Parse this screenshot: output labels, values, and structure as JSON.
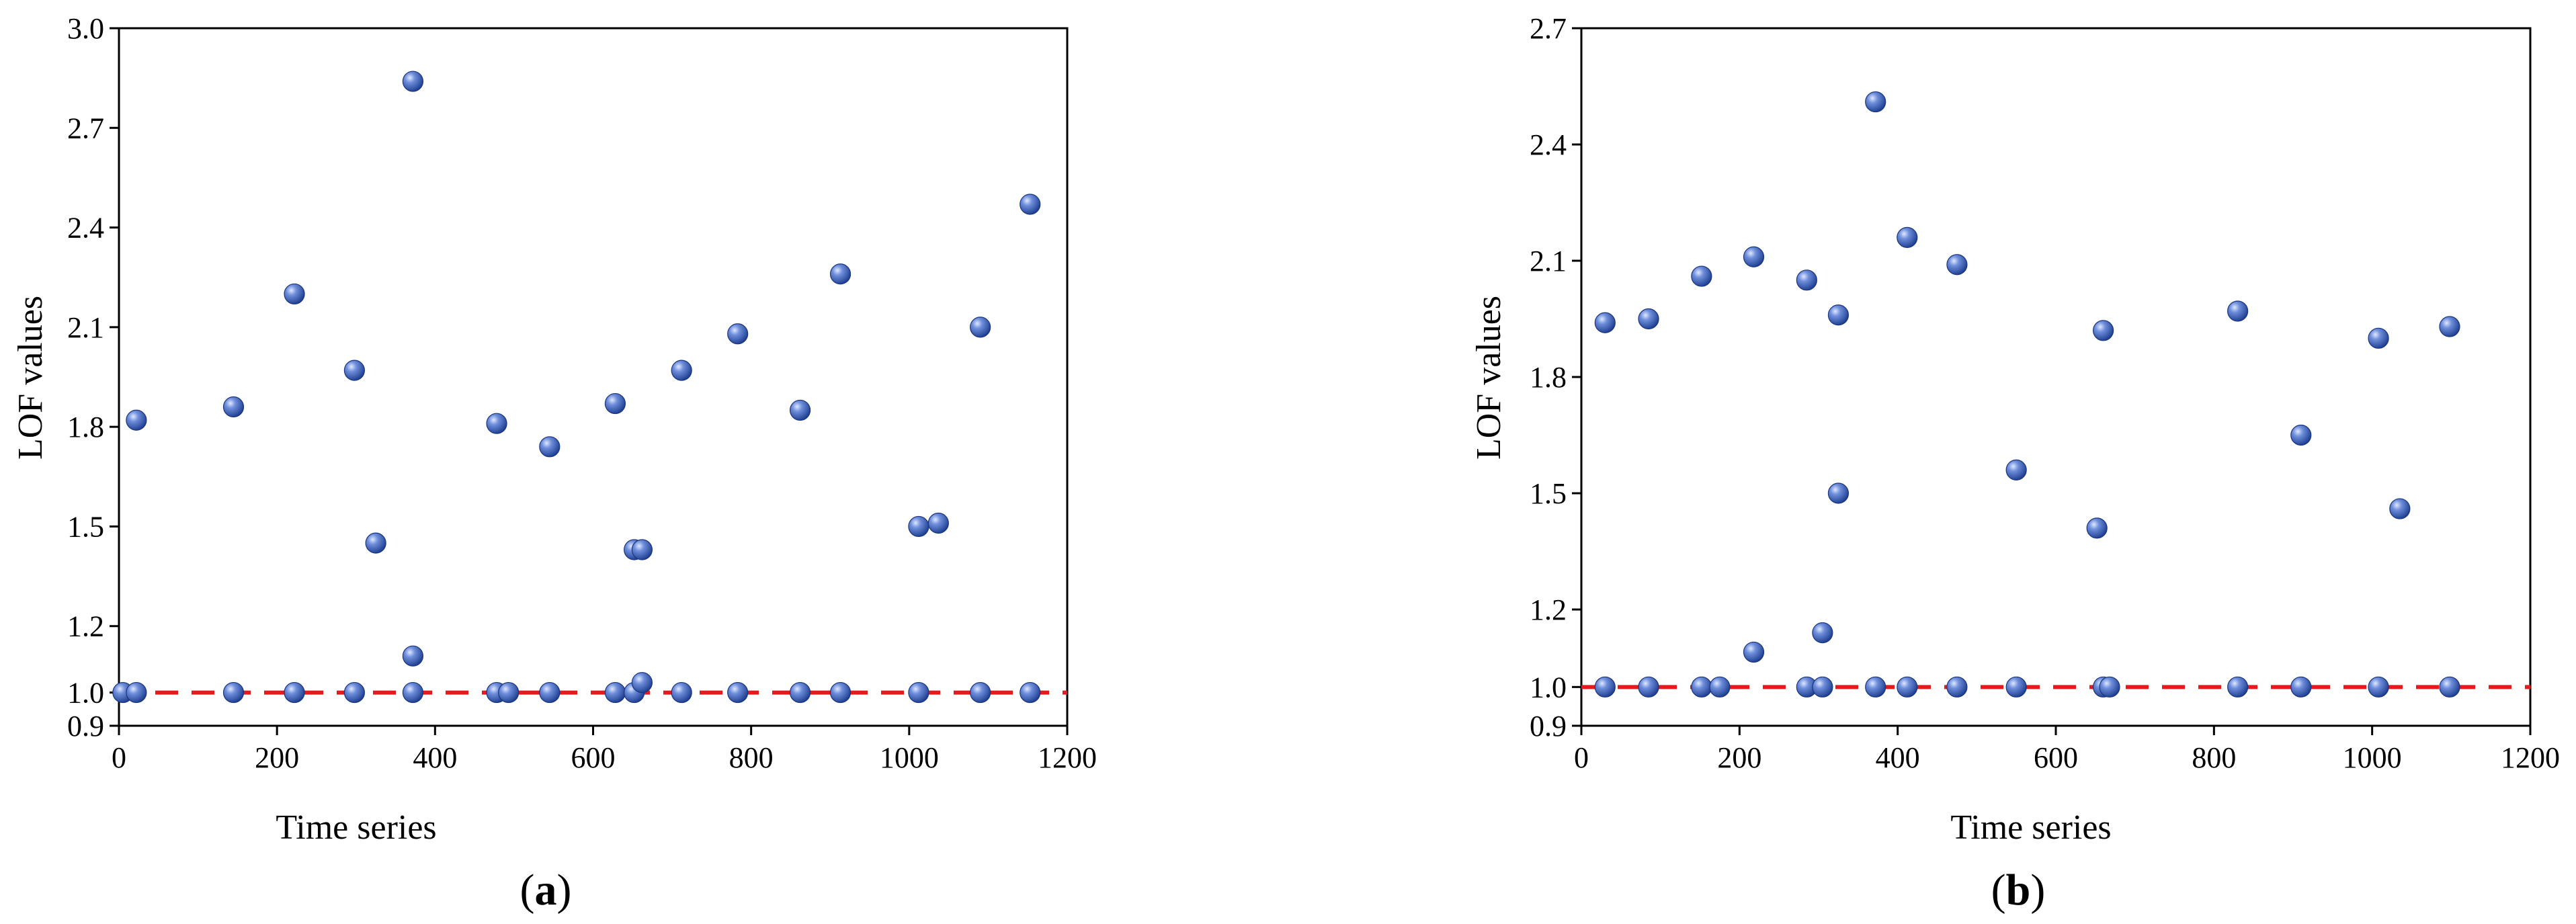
{
  "chart_data": [
    {
      "type": "scatter",
      "panel_label": "a",
      "title": "",
      "xlabel": "Time series",
      "ylabel": "LOF values",
      "xlim": [
        0,
        1200
      ],
      "ylim": [
        0.9,
        3.0
      ],
      "xticks": [
        0,
        200,
        400,
        600,
        800,
        1000,
        1200
      ],
      "yticks": [
        0.9,
        1.0,
        1.2,
        1.5,
        1.8,
        2.1,
        2.4,
        2.7,
        3.0
      ],
      "ytick_labels": [
        "0.9",
        "1.0",
        "1.2",
        "1.5",
        "1.8",
        "2.1",
        "2.4",
        "2.7",
        "3.0"
      ],
      "grid": false,
      "legend": "none",
      "marker_color": "#3a5fb8",
      "threshold": {
        "y": 1.0,
        "x": [
          0,
          1200
        ],
        "color": "#e41a1c",
        "style": "dashed"
      },
      "series": [
        {
          "points": [
            [
              5,
              1.0
            ],
            [
              22,
              1.82
            ],
            [
              22,
              1.0
            ],
            [
              145,
              1.86
            ],
            [
              145,
              1.0
            ],
            [
              222,
              2.2
            ],
            [
              222,
              1.0
            ],
            [
              298,
              1.97
            ],
            [
              298,
              1.0
            ],
            [
              325,
              1.45
            ],
            [
              372,
              2.84
            ],
            [
              372,
              1.11
            ],
            [
              372,
              1.0
            ],
            [
              478,
              1.81
            ],
            [
              478,
              1.0
            ],
            [
              493,
              1.0
            ],
            [
              545,
              1.74
            ],
            [
              545,
              1.0
            ],
            [
              628,
              1.87
            ],
            [
              628,
              1.0
            ],
            [
              652,
              1.43
            ],
            [
              652,
              1.0
            ],
            [
              662,
              1.43
            ],
            [
              662,
              1.03
            ],
            [
              712,
              1.97
            ],
            [
              712,
              1.0
            ],
            [
              783,
              2.08
            ],
            [
              783,
              1.0
            ],
            [
              862,
              1.85
            ],
            [
              862,
              1.0
            ],
            [
              913,
              2.26
            ],
            [
              913,
              1.0
            ],
            [
              1012,
              1.5
            ],
            [
              1012,
              1.0
            ],
            [
              1037,
              1.51
            ],
            [
              1090,
              2.1
            ],
            [
              1090,
              1.0
            ],
            [
              1153,
              2.47
            ],
            [
              1153,
              1.0
            ]
          ]
        }
      ]
    },
    {
      "type": "scatter",
      "panel_label": "b",
      "title": "",
      "xlabel": "Time series",
      "ylabel": "LOF values",
      "xlim": [
        0,
        1200
      ],
      "ylim": [
        0.9,
        2.7
      ],
      "xticks": [
        0,
        200,
        400,
        600,
        800,
        1000,
        1200
      ],
      "yticks": [
        0.9,
        1.0,
        1.2,
        1.5,
        1.8,
        2.1,
        2.4,
        2.7
      ],
      "ytick_labels": [
        "0.9",
        "1.0",
        "1.2",
        "1.5",
        "1.8",
        "2.1",
        "2.4",
        "2.7"
      ],
      "grid": false,
      "legend": "none",
      "marker_color": "#3a5fb8",
      "threshold": {
        "y": 1.0,
        "x": [
          0,
          1200
        ],
        "color": "#e41a1c",
        "style": "dashed"
      },
      "series": [
        {
          "points": [
            [
              30,
              1.94
            ],
            [
              30,
              1.0
            ],
            [
              85,
              1.95
            ],
            [
              85,
              1.0
            ],
            [
              152,
              2.06
            ],
            [
              152,
              1.0
            ],
            [
              175,
              1.0
            ],
            [
              218,
              2.11
            ],
            [
              218,
              1.09
            ],
            [
              285,
              2.05
            ],
            [
              285,
              1.0
            ],
            [
              305,
              1.14
            ],
            [
              305,
              1.0
            ],
            [
              325,
              1.96
            ],
            [
              325,
              1.5
            ],
            [
              372,
              2.51
            ],
            [
              372,
              1.0
            ],
            [
              412,
              2.16
            ],
            [
              412,
              1.0
            ],
            [
              475,
              2.09
            ],
            [
              475,
              1.0
            ],
            [
              550,
              1.56
            ],
            [
              550,
              1.0
            ],
            [
              652,
              1.41
            ],
            [
              660,
              1.92
            ],
            [
              660,
              1.0
            ],
            [
              668,
              1.0
            ],
            [
              830,
              1.97
            ],
            [
              830,
              1.0
            ],
            [
              910,
              1.65
            ],
            [
              910,
              1.0
            ],
            [
              1008,
              1.9
            ],
            [
              1008,
              1.0
            ],
            [
              1035,
              1.46
            ],
            [
              1098,
              1.93
            ],
            [
              1098,
              1.0
            ]
          ]
        }
      ]
    }
  ]
}
